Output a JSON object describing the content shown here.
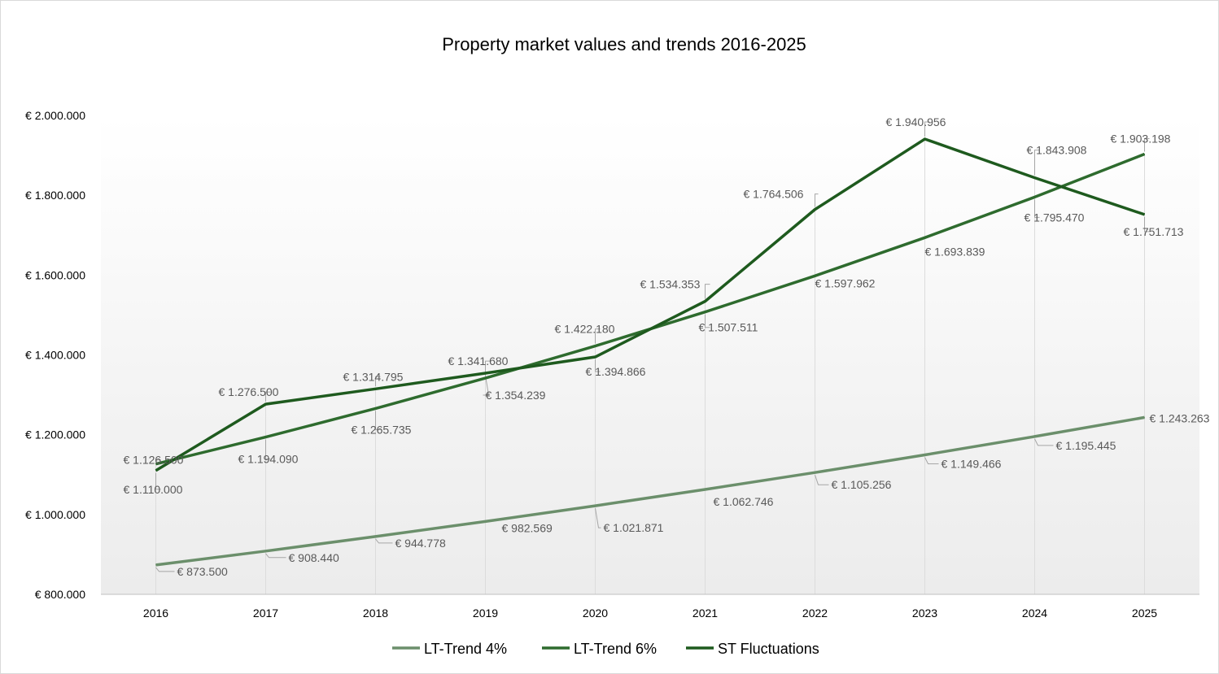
{
  "chart_data": {
    "type": "line",
    "title": "Property market values and trends 2016-2025",
    "xlabel": "",
    "ylabel": "",
    "categories": [
      "2016",
      "2017",
      "2018",
      "2019",
      "2020",
      "2021",
      "2022",
      "2023",
      "2024",
      "2025"
    ],
    "ylim": [
      800000,
      2000000
    ],
    "y_ticks": [
      800000,
      1000000,
      1200000,
      1400000,
      1600000,
      1800000,
      2000000
    ],
    "y_tick_labels": [
      "€ 800.000",
      "€ 1.000.000",
      "€ 1.200.000",
      "€ 1.400.000",
      "€ 1.600.000",
      "€ 1.800.000",
      "€ 2.000.000"
    ],
    "grid": false,
    "legend_position": "bottom",
    "series": [
      {
        "name": "LT-Trend 4%",
        "color": "#6b8f6b",
        "values": [
          873500,
          908440,
          944778,
          982569,
          1021871,
          1062746,
          1105256,
          1149466,
          1195445,
          1243263
        ],
        "labels": [
          "€ 873.500",
          "€ 908.440",
          "€ 944.778",
          "€ 982.569",
          "€ 1.021.871",
          "€ 1.062.746",
          "€ 1.105.256",
          "€ 1.149.466",
          "€ 1.195.445",
          "€ 1.243.263"
        ]
      },
      {
        "name": "LT-Trend 6%",
        "color": "#2e6b2e",
        "values": [
          1126500,
          1194090,
          1265735,
          1341680,
          1422180,
          1507511,
          1597962,
          1693839,
          1795470,
          1903198
        ],
        "labels": [
          "€ 1.126.500",
          "€ 1.194.090",
          "€ 1.265.735",
          "€ 1.341.680",
          "€ 1.422.180",
          "€ 1.507.511",
          "€ 1.597.962",
          "€ 1.693.839",
          "€ 1.795.470",
          "€ 1.903.198"
        ]
      },
      {
        "name": "ST Fluctuations",
        "color": "#1e5a1e",
        "values": [
          1110000,
          1276500,
          1314795,
          1354239,
          1394866,
          1534353,
          1764506,
          1940956,
          1843908,
          1751713
        ],
        "labels": [
          "€ 1.110.000",
          "€ 1.276.500",
          "€ 1.314.795",
          "€ 1.354.239",
          "€ 1.394.866",
          "€ 1.534.353",
          "€ 1.764.506",
          "€ 1.940.956",
          "€ 1.843.908",
          "€ 1.751.713"
        ]
      }
    ]
  }
}
